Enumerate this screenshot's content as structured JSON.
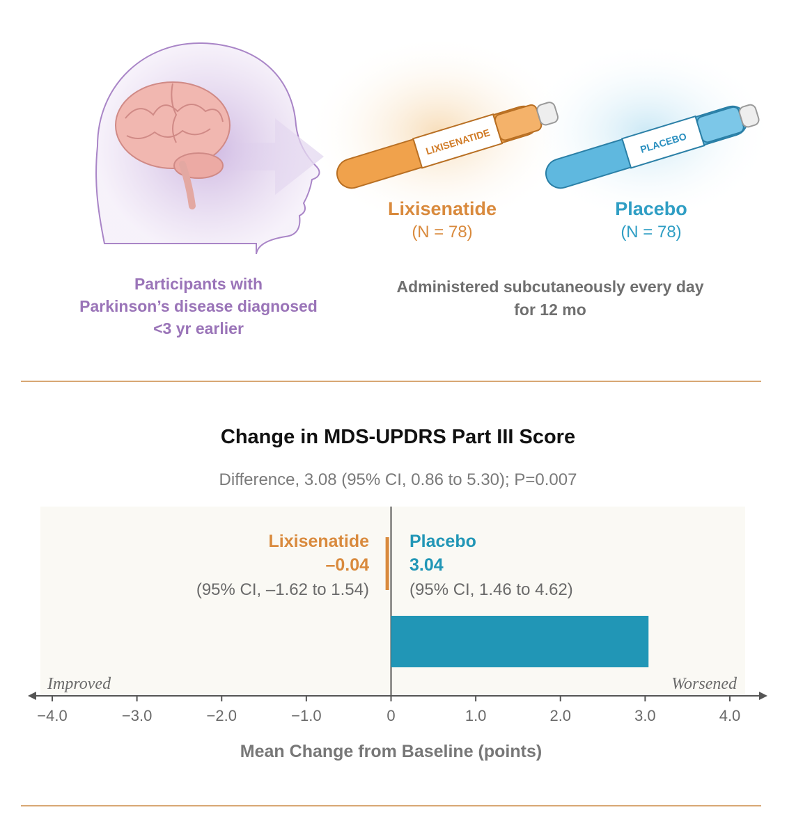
{
  "header": {
    "participants_lines": [
      "Participants with",
      "Parkinson’s disease diagnosed",
      "<3 yr earlier"
    ],
    "arms": [
      {
        "name": "Lixisenatide",
        "n": "(N = 78)",
        "pen_label": "LIXISENATIDE",
        "color": "#d98a3d"
      },
      {
        "name": "Placebo",
        "n": "(N = 78)",
        "pen_label": "PLACEBO",
        "color": "#2f9ec4"
      }
    ],
    "administration_lines": [
      "Administered subcutaneously every day",
      "for 12 mo"
    ]
  },
  "chart_data": {
    "type": "bar",
    "orientation": "horizontal",
    "title": "Change in MDS-UPDRS Part III Score",
    "subtitle": "Difference, 3.08 (95% CI, 0.86 to 5.30); P=0.007",
    "xlabel": "Mean Change from Baseline (points)",
    "xlim": [
      -4.0,
      4.0
    ],
    "ticks": [
      -4.0,
      -3.0,
      -2.0,
      -1.0,
      0,
      1.0,
      2.0,
      3.0,
      4.0
    ],
    "tick_labels": [
      "−4.0",
      "−3.0",
      "−2.0",
      "−1.0",
      "0",
      "1.0",
      "2.0",
      "3.0",
      "4.0"
    ],
    "direction_labels": {
      "left": "Improved",
      "right": "Worsened"
    },
    "series": [
      {
        "name": "Lixisenatide",
        "value": -0.04,
        "value_label": "–0.04",
        "ci_label": "(95% CI, –1.62 to 1.54)",
        "color": "#d98a3d"
      },
      {
        "name": "Placebo",
        "value": 3.04,
        "value_label": "3.04",
        "ci_label": "(95% CI, 1.46 to 4.62)",
        "color": "#2196b6"
      }
    ],
    "colors": {
      "plot_bg": "#faf9f4",
      "axis": "#555555"
    }
  }
}
